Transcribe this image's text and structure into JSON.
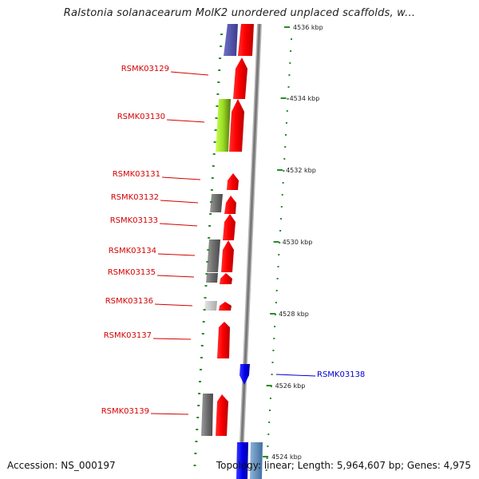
{
  "title": "Ralstonia solanacearum MolK2 unordered unplaced scaffolds, w...",
  "accession_text": "Accession: NS_000197",
  "topology_text": "Topology: linear; Length: 5,964,607 bp; Genes: 4,975",
  "colors": {
    "forward_gene": "#ff0000",
    "reverse_gene": "#1a1aff",
    "label_forward": "#d40000",
    "label_reverse": "#0000cc",
    "tick": "#2a8a2a",
    "backbone": "#8a8a8a"
  },
  "kbp_ticks": [
    {
      "label": "4536 kbp"
    },
    {
      "label": "4534 kbp"
    },
    {
      "label": "4532 kbp"
    },
    {
      "label": "4530 kbp"
    },
    {
      "label": "4528 kbp"
    },
    {
      "label": "4526 kbp"
    },
    {
      "label": "4524 kbp"
    }
  ],
  "gene_labels": [
    {
      "text": "RSMK03129",
      "strand": "forward"
    },
    {
      "text": "RSMK03130",
      "strand": "forward"
    },
    {
      "text": "RSMK03131",
      "strand": "forward"
    },
    {
      "text": "RSMK03132",
      "strand": "forward"
    },
    {
      "text": "RSMK03133",
      "strand": "forward"
    },
    {
      "text": "RSMK03134",
      "strand": "forward"
    },
    {
      "text": "RSMK03135",
      "strand": "forward"
    },
    {
      "text": "RSMK03136",
      "strand": "forward"
    },
    {
      "text": "RSMK03137",
      "strand": "forward"
    },
    {
      "text": "RSMK03138",
      "strand": "reverse"
    },
    {
      "text": "RSMK03139",
      "strand": "forward"
    }
  ]
}
